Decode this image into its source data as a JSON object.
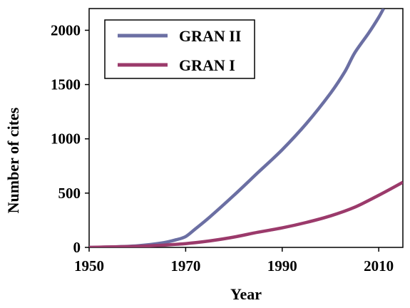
{
  "chart_data": {
    "type": "line",
    "xlabel": "Year",
    "ylabel": "Number of cites",
    "xlim": [
      1950,
      2015
    ],
    "ylim": [
      0,
      2200
    ],
    "xticks": [
      1950,
      1970,
      1990,
      2010
    ],
    "yticks": [
      0,
      500,
      1000,
      1500,
      2000
    ],
    "legend_position": "top-left",
    "grid": false,
    "series": [
      {
        "name": "GRAN II",
        "color": "#6b6fa3",
        "x": [
          1950,
          1955,
          1960,
          1965,
          1968,
          1970,
          1972,
          1975,
          1980,
          1985,
          1990,
          1995,
          2000,
          2003,
          2005,
          2008,
          2010,
          2011
        ],
        "y": [
          0,
          5,
          15,
          40,
          70,
          100,
          170,
          280,
          480,
          690,
          900,
          1140,
          1420,
          1620,
          1790,
          1980,
          2120,
          2200
        ]
      },
      {
        "name": "GRAN I",
        "color": "#9b3a6b",
        "x": [
          1950,
          1955,
          1960,
          1965,
          1970,
          1975,
          1980,
          1985,
          1990,
          1995,
          2000,
          2005,
          2010,
          2015
        ],
        "y": [
          0,
          5,
          10,
          20,
          35,
          60,
          95,
          140,
          180,
          230,
          290,
          370,
          480,
          600
        ]
      }
    ]
  }
}
